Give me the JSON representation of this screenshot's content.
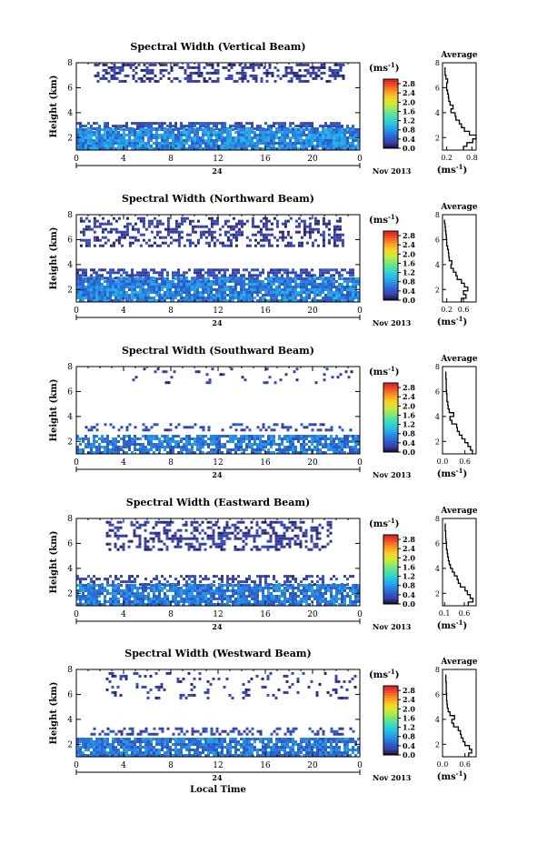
{
  "figure": {
    "x_axis_label": "Local Time",
    "date_label": "Nov 2013",
    "day_label": "24",
    "colorbar_unit_label": "(ms",
    "unit_superscript": "-1",
    "avg_title": "Average",
    "avg_unit_label": "(ms",
    "ylabel": "Height (km)"
  },
  "chart_data": [
    {
      "type": "heatmap",
      "title": "Spectral Width (Vertical Beam)",
      "xlabel": "",
      "ylabel": "Height (km)",
      "xlim": [
        0,
        24
      ],
      "ylim": [
        1,
        8
      ],
      "x_ticks": [
        "0",
        "4",
        "8",
        "12",
        "16",
        "20",
        "0"
      ],
      "y_ticks": [
        "2",
        "4",
        "6",
        "8"
      ],
      "colorbar_ticks": [
        "0.0",
        "0.4",
        "0.8",
        "1.2",
        "1.6",
        "2.0",
        "2.4",
        "2.8"
      ],
      "colorbar_range": [
        0,
        3.0
      ],
      "bands": [
        {
          "y0": 6.4,
          "y1": 7.9,
          "x0": 1.5,
          "x1": 22.5,
          "fill": 0.45,
          "level": 0.2
        },
        {
          "y0": 2.6,
          "y1": 3.2,
          "x0": 0.0,
          "x1": 23.5,
          "fill": 0.7,
          "level": 0.35
        },
        {
          "y0": 1.0,
          "y1": 2.6,
          "x0": 0.0,
          "x1": 24.0,
          "fill": 0.92,
          "level": 0.7
        }
      ],
      "average_profile": {
        "xlim": [
          0.1,
          0.9
        ],
        "x_ticks": [
          "0.2",
          "0.8"
        ],
        "ylim": [
          1,
          8
        ],
        "y_ticks": [
          "2",
          "4",
          "6",
          "8"
        ],
        "height": [
          1.0,
          1.3,
          1.6,
          1.9,
          2.2,
          2.5,
          2.8,
          3.1,
          3.4,
          3.7,
          4.0,
          4.3,
          4.6,
          4.9,
          5.2,
          5.5,
          5.8,
          6.1,
          6.4,
          6.7,
          7.0,
          7.3,
          7.6
        ],
        "value": [
          0.6,
          0.68,
          0.82,
          0.9,
          0.74,
          0.62,
          0.55,
          0.5,
          0.42,
          0.4,
          0.3,
          0.35,
          0.28,
          0.25,
          0.24,
          0.22,
          0.2,
          0.2,
          0.22,
          0.18,
          0.16,
          0.16,
          0.15
        ]
      }
    },
    {
      "type": "heatmap",
      "title": "Spectral Width (Northward Beam)",
      "xlabel": "",
      "ylabel": "Height (km)",
      "xlim": [
        0,
        24
      ],
      "ylim": [
        1,
        8
      ],
      "x_ticks": [
        "0",
        "4",
        "8",
        "12",
        "16",
        "20",
        "0"
      ],
      "y_ticks": [
        "2",
        "4",
        "6",
        "8"
      ],
      "colorbar_ticks": [
        "0.0",
        "0.4",
        "0.8",
        "1.2",
        "1.6",
        "2.0",
        "2.4",
        "2.8"
      ],
      "colorbar_range": [
        0,
        3.0
      ],
      "bands": [
        {
          "y0": 5.4,
          "y1": 7.9,
          "x0": 0.3,
          "x1": 22.5,
          "fill": 0.4,
          "level": 0.2
        },
        {
          "y0": 2.8,
          "y1": 3.5,
          "x0": 0.0,
          "x1": 23.5,
          "fill": 0.65,
          "level": 0.3
        },
        {
          "y0": 1.0,
          "y1": 2.8,
          "x0": 0.0,
          "x1": 24.0,
          "fill": 0.9,
          "level": 0.65
        }
      ],
      "average_profile": {
        "xlim": [
          0.1,
          0.9
        ],
        "x_ticks": [
          "0.2",
          "0.6"
        ],
        "ylim": [
          1,
          8
        ],
        "y_ticks": [
          "2",
          "4",
          "6",
          "8"
        ],
        "height": [
          1.0,
          1.3,
          1.6,
          1.9,
          2.2,
          2.5,
          2.8,
          3.1,
          3.4,
          3.7,
          4.0,
          4.3,
          4.6,
          4.9,
          5.2,
          5.5,
          5.8,
          6.1,
          6.4,
          6.7,
          7.0,
          7.3,
          7.6
        ],
        "value": [
          0.55,
          0.66,
          0.6,
          0.7,
          0.62,
          0.55,
          0.45,
          0.42,
          0.36,
          0.3,
          0.32,
          0.26,
          0.25,
          0.24,
          0.22,
          0.2,
          0.2,
          0.19,
          0.18,
          0.17,
          0.16,
          0.15,
          0.15
        ]
      }
    },
    {
      "type": "heatmap",
      "title": "Spectral Width (Southward Beam)",
      "xlabel": "",
      "ylabel": "Height (km)",
      "xlim": [
        0,
        24
      ],
      "ylim": [
        1,
        8
      ],
      "x_ticks": [
        "0",
        "4",
        "8",
        "12",
        "16",
        "20",
        "0"
      ],
      "y_ticks": [
        "2",
        "4",
        "6",
        "8"
      ],
      "colorbar_ticks": [
        "0.0",
        "0.4",
        "0.8",
        "1.2",
        "1.6",
        "2.0",
        "2.4",
        "2.8"
      ],
      "colorbar_range": [
        0,
        3.0
      ],
      "bands": [
        {
          "y0": 6.6,
          "y1": 7.9,
          "x0": 4.5,
          "x1": 23.5,
          "fill": 0.12,
          "level": 0.2
        },
        {
          "y0": 2.8,
          "y1": 3.4,
          "x0": 0.5,
          "x1": 23.5,
          "fill": 0.3,
          "level": 0.3
        },
        {
          "y0": 1.0,
          "y1": 2.4,
          "x0": 0.0,
          "x1": 24.0,
          "fill": 0.75,
          "level": 0.6
        }
      ],
      "average_profile": {
        "xlim": [
          0.0,
          0.9
        ],
        "x_ticks": [
          "0.0",
          "0.6"
        ],
        "ylim": [
          1,
          8
        ],
        "y_ticks": [
          "2",
          "4",
          "6",
          "8"
        ],
        "height": [
          1.0,
          1.3,
          1.6,
          1.9,
          2.2,
          2.5,
          2.8,
          3.1,
          3.4,
          3.7,
          4.0,
          4.3,
          4.6,
          4.9,
          5.2,
          5.5,
          5.8,
          6.1,
          6.4,
          6.7,
          7.0,
          7.3,
          7.6
        ],
        "value": [
          0.8,
          0.75,
          0.68,
          0.6,
          0.52,
          0.45,
          0.4,
          0.38,
          0.25,
          0.2,
          0.3,
          0.18,
          0.15,
          0.14,
          0.12,
          0.12,
          0.11,
          0.1,
          0.1,
          0.1,
          0.09,
          0.09,
          0.09
        ]
      }
    },
    {
      "type": "heatmap",
      "title": "Spectral Width (Eastward Beam)",
      "xlabel": "",
      "ylabel": "Height (km)",
      "xlim": [
        0,
        24
      ],
      "ylim": [
        1,
        8
      ],
      "x_ticks": [
        "0",
        "4",
        "8",
        "12",
        "16",
        "20",
        "0"
      ],
      "y_ticks": [
        "2",
        "4",
        "6",
        "8"
      ],
      "colorbar_ticks": [
        "0.0",
        "0.4",
        "0.8",
        "1.2",
        "1.6",
        "2.0",
        "2.4",
        "2.8"
      ],
      "colorbar_range": [
        0,
        3.0
      ],
      "bands": [
        {
          "y0": 5.4,
          "y1": 7.9,
          "x0": 2.5,
          "x1": 21.5,
          "fill": 0.4,
          "level": 0.2
        },
        {
          "y0": 2.6,
          "y1": 3.4,
          "x0": 0.0,
          "x1": 23.5,
          "fill": 0.4,
          "level": 0.3
        },
        {
          "y0": 1.0,
          "y1": 2.6,
          "x0": 0.0,
          "x1": 24.0,
          "fill": 0.85,
          "level": 0.6
        }
      ],
      "average_profile": {
        "xlim": [
          0.05,
          0.9
        ],
        "x_ticks": [
          "0.1",
          "0.6"
        ],
        "ylim": [
          1,
          8
        ],
        "y_ticks": [
          "2",
          "4",
          "6",
          "8"
        ],
        "height": [
          1.0,
          1.3,
          1.6,
          1.9,
          2.2,
          2.5,
          2.8,
          3.1,
          3.4,
          3.7,
          4.0,
          4.3,
          4.6,
          4.9,
          5.2,
          5.5,
          5.8,
          6.1,
          6.4,
          6.7,
          7.0,
          7.3,
          7.6
        ],
        "value": [
          0.7,
          0.82,
          0.75,
          0.68,
          0.62,
          0.5,
          0.45,
          0.42,
          0.35,
          0.3,
          0.25,
          0.22,
          0.2,
          0.18,
          0.17,
          0.15,
          0.15,
          0.14,
          0.13,
          0.13,
          0.12,
          0.12,
          0.12
        ]
      }
    },
    {
      "type": "heatmap",
      "title": "Spectral Width (Westward Beam)",
      "xlabel": "Local Time",
      "ylabel": "Height (km)",
      "xlim": [
        0,
        24
      ],
      "ylim": [
        1,
        8
      ],
      "x_ticks": [
        "0",
        "4",
        "8",
        "12",
        "16",
        "20",
        "0"
      ],
      "y_ticks": [
        "2",
        "4",
        "6",
        "8"
      ],
      "colorbar_ticks": [
        "0.0",
        "0.4",
        "0.8",
        "1.2",
        "1.6",
        "2.0",
        "2.4",
        "2.8"
      ],
      "colorbar_range": [
        0,
        3.0
      ],
      "bands": [
        {
          "y0": 5.6,
          "y1": 7.9,
          "x0": 2.5,
          "x1": 23.5,
          "fill": 0.12,
          "level": 0.2
        },
        {
          "y0": 2.7,
          "y1": 3.3,
          "x0": 0.5,
          "x1": 23.5,
          "fill": 0.35,
          "level": 0.3
        },
        {
          "y0": 1.0,
          "y1": 2.5,
          "x0": 0.0,
          "x1": 24.0,
          "fill": 0.85,
          "level": 0.6
        }
      ],
      "average_profile": {
        "xlim": [
          0.0,
          0.9
        ],
        "x_ticks": [
          "0.0",
          "0.6"
        ],
        "ylim": [
          1,
          8
        ],
        "y_ticks": [
          "2",
          "4",
          "6",
          "8"
        ],
        "height": [
          1.0,
          1.3,
          1.6,
          1.9,
          2.2,
          2.5,
          2.8,
          3.1,
          3.4,
          3.7,
          4.0,
          4.3,
          4.6,
          4.9,
          5.2,
          5.5,
          5.8,
          6.1,
          6.4,
          6.7,
          7.0,
          7.3,
          7.6
        ],
        "value": [
          0.7,
          0.78,
          0.72,
          0.6,
          0.55,
          0.5,
          0.48,
          0.42,
          0.3,
          0.25,
          0.32,
          0.2,
          0.15,
          0.13,
          0.12,
          0.11,
          0.11,
          0.1,
          0.1,
          0.1,
          0.09,
          0.09,
          0.09
        ]
      }
    }
  ]
}
